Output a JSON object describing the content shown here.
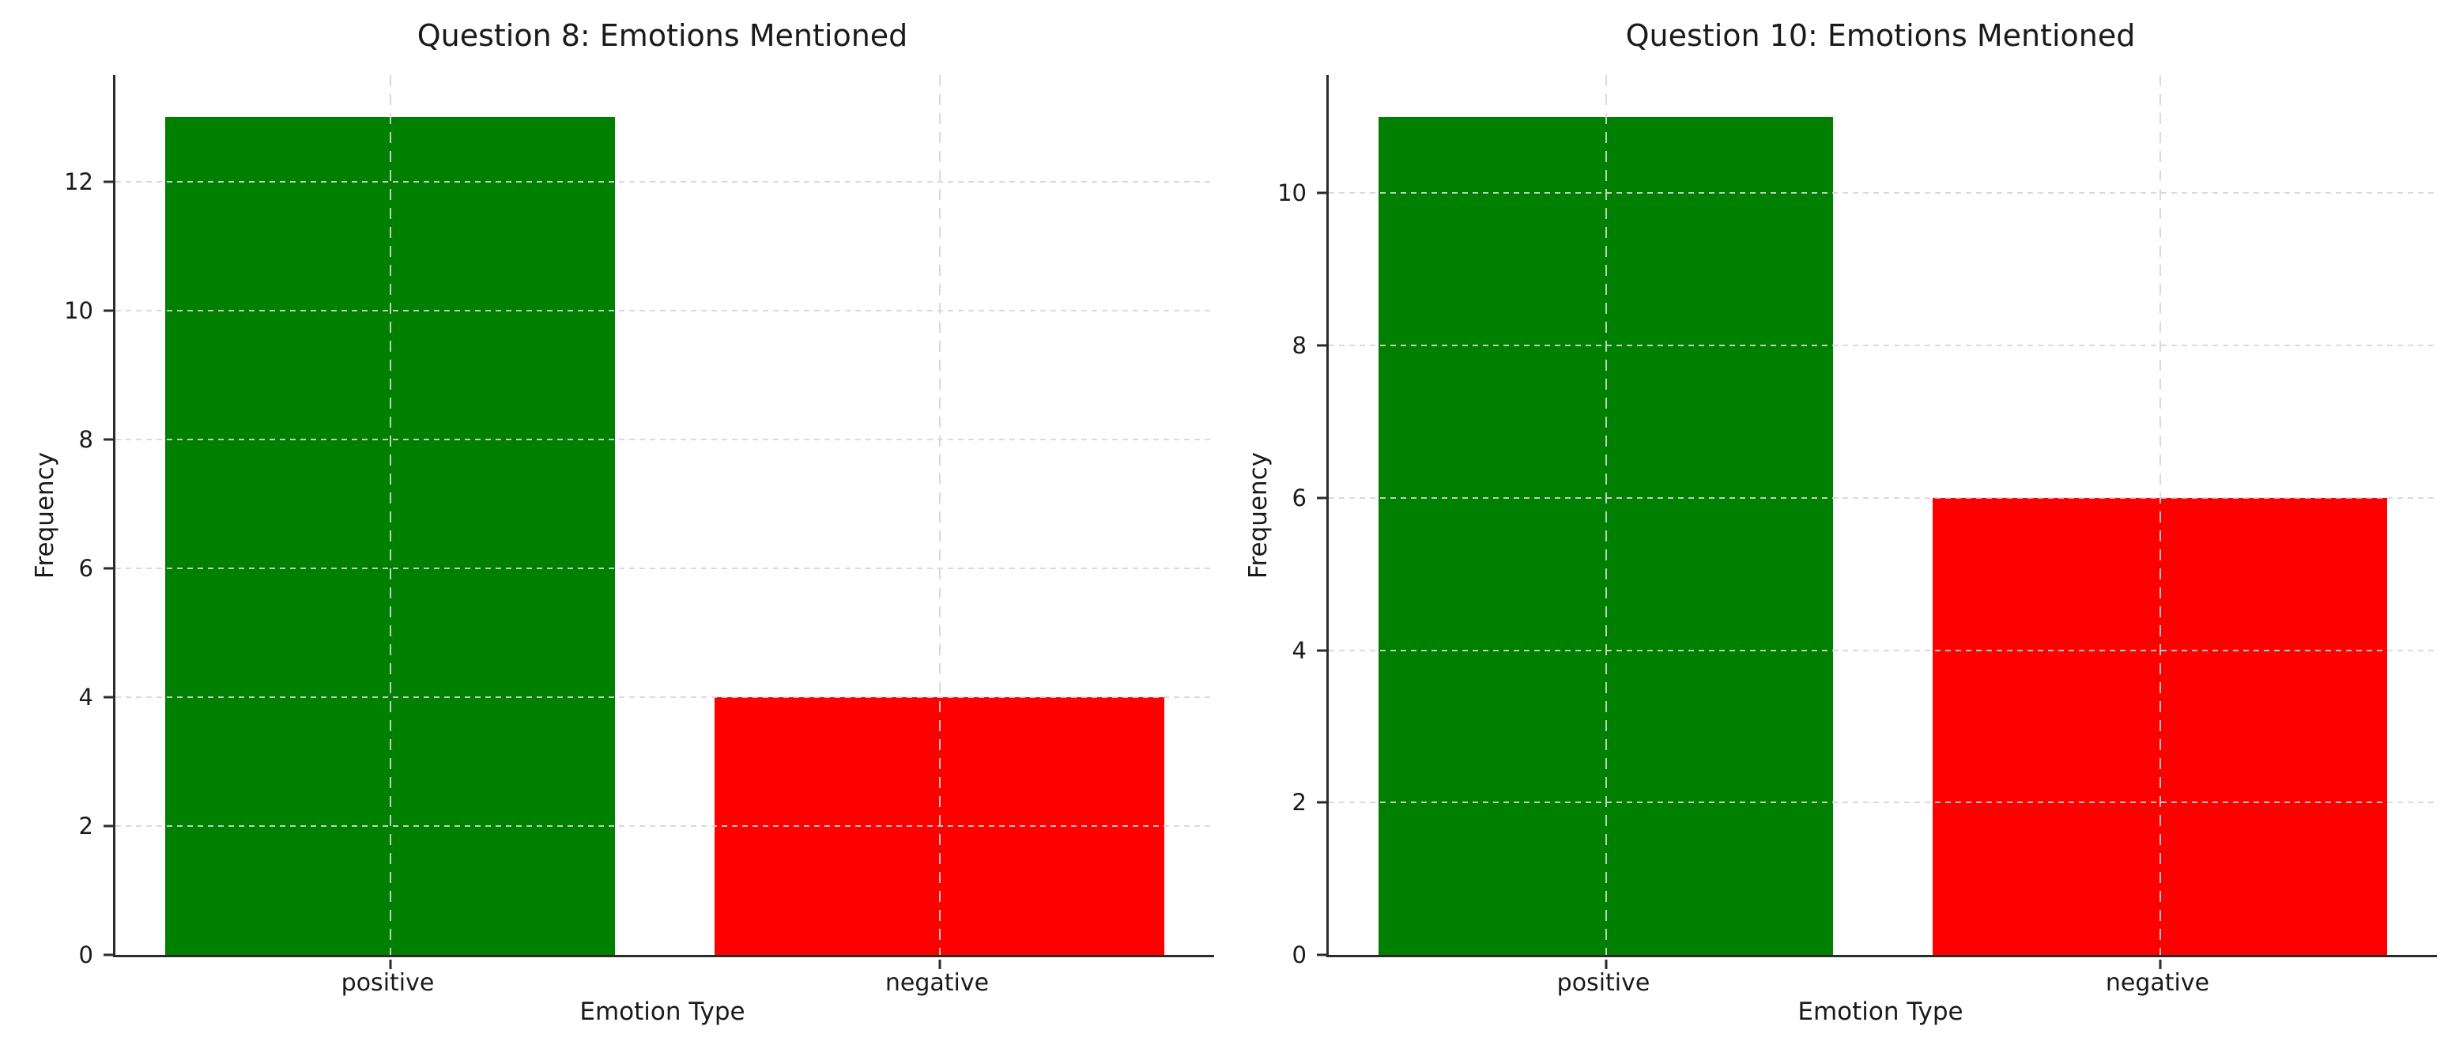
{
  "figure": {
    "background": "#ffffff",
    "text_color": "#1a1a1a",
    "grid_color": "#d6d6d6",
    "spine_color": "#2b2b2b",
    "positive_color": "#008000",
    "negative_color": "#ff0000"
  },
  "chart_data": [
    {
      "type": "bar",
      "title": "Question 8: Emotions Mentioned",
      "xlabel": "Emotion Type",
      "ylabel": "Frequency",
      "categories": [
        "positive",
        "negative"
      ],
      "values": [
        13,
        4
      ],
      "bar_colors": [
        "#008000",
        "#ff0000"
      ],
      "yticks": [
        0,
        2,
        4,
        6,
        8,
        10,
        12
      ],
      "ylim": [
        0,
        13.65
      ],
      "grid": "dashed, horizontal and vertical, drawn over bars",
      "legend": "none"
    },
    {
      "type": "bar",
      "title": "Question 10: Emotions Mentioned",
      "xlabel": "Emotion Type",
      "ylabel": "Frequency",
      "categories": [
        "positive",
        "negative"
      ],
      "values": [
        11,
        6
      ],
      "bar_colors": [
        "#008000",
        "#ff0000"
      ],
      "yticks": [
        0,
        2,
        4,
        6,
        8,
        10
      ],
      "ylim": [
        0,
        11.55
      ],
      "grid": "dashed, horizontal and vertical, drawn over bars",
      "legend": "none"
    }
  ]
}
